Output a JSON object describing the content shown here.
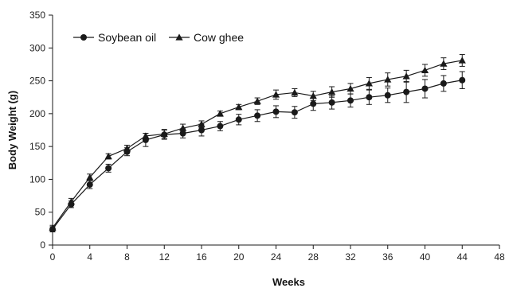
{
  "chart_data": {
    "type": "line",
    "title": "",
    "xlabel": "Weeks",
    "ylabel": "Body Weight (g)",
    "xlim": [
      0,
      48
    ],
    "ylim": [
      0,
      350
    ],
    "xticks": [
      0,
      4,
      8,
      12,
      16,
      20,
      24,
      28,
      32,
      36,
      40,
      44,
      48
    ],
    "yticks": [
      0,
      50,
      100,
      150,
      200,
      250,
      300,
      350
    ],
    "grid": false,
    "legend_position": "top-left",
    "x": [
      0,
      2,
      4,
      6,
      8,
      10,
      12,
      14,
      16,
      18,
      20,
      22,
      24,
      26,
      28,
      30,
      32,
      34,
      36,
      38,
      40,
      42,
      44
    ],
    "series": [
      {
        "name": "Soybean oil",
        "marker": "circle",
        "values": [
          24,
          62,
          92,
          117,
          142,
          160,
          168,
          170,
          175,
          181,
          191,
          197,
          203,
          202,
          215,
          217,
          220,
          225,
          228,
          233,
          238,
          246,
          251
        ],
        "errors": [
          4,
          5,
          6,
          6,
          6,
          10,
          7,
          7,
          9,
          7,
          8,
          9,
          9,
          9,
          10,
          10,
          10,
          11,
          11,
          16,
          14,
          12,
          13
        ]
      },
      {
        "name": "Cow ghee",
        "marker": "triangle",
        "values": [
          26,
          66,
          103,
          135,
          147,
          166,
          169,
          178,
          184,
          200,
          210,
          219,
          229,
          232,
          227,
          233,
          238,
          246,
          252,
          257,
          266,
          276,
          281
        ],
        "errors": [
          4,
          5,
          5,
          4,
          5,
          4,
          7,
          6,
          5,
          4,
          4,
          5,
          7,
          6,
          7,
          8,
          8,
          9,
          10,
          9,
          9,
          9,
          9
        ]
      }
    ],
    "colors": {
      "line": "#1a1a1a",
      "axis": "#1a1a1a",
      "background": "#ffffff"
    }
  }
}
